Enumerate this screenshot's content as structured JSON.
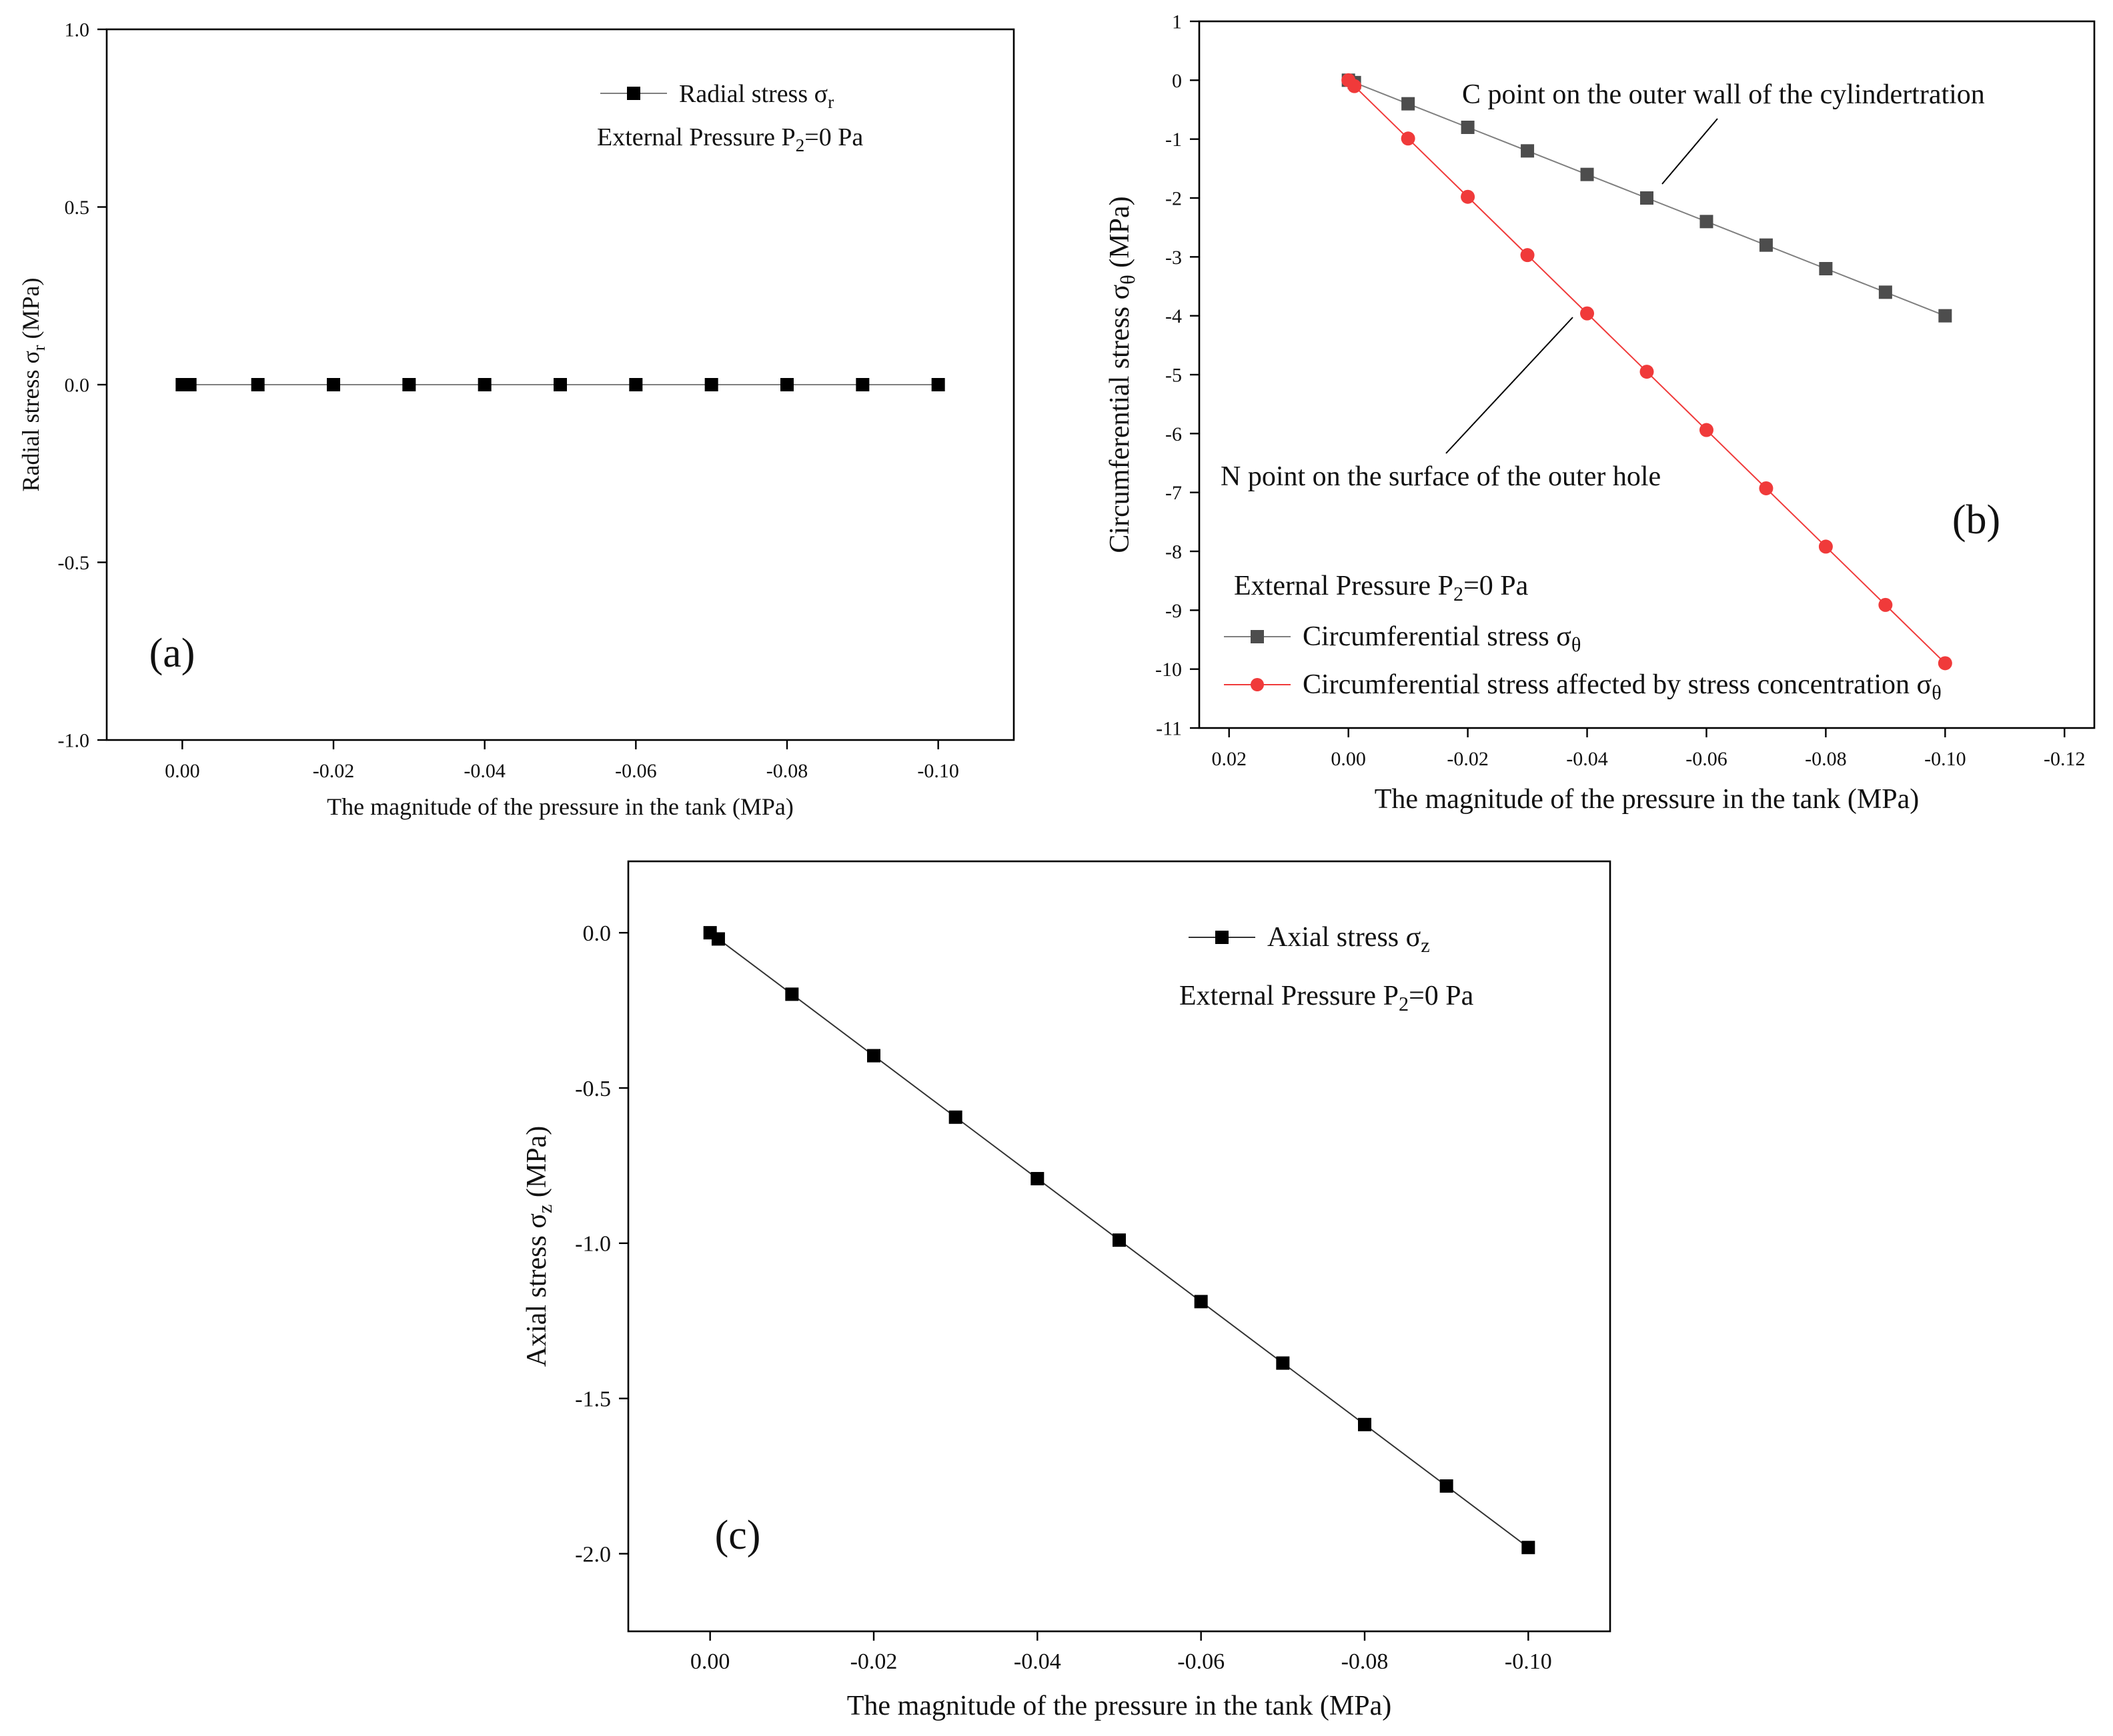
{
  "chart_data": [
    {
      "id": "a",
      "type": "line",
      "panel_label": "(a)",
      "xlabel": "The magnitude of the pressure in the tank (MPa)",
      "ylabel": "Radial stress σr (MPa)",
      "ylabel_main": "Radial stress σ",
      "ylabel_sub": "r",
      "ylabel_unit": " (MPa)",
      "xlim": [
        0.01,
        -0.11
      ],
      "ylim": [
        -1.0,
        1.0
      ],
      "xticks": [
        0.0,
        -0.02,
        -0.04,
        -0.06,
        -0.08,
        -0.1
      ],
      "xtick_labels": [
        "0.00",
        "-0.02",
        "-0.04",
        "-0.06",
        "-0.08",
        "-0.10"
      ],
      "yticks": [
        -1.0,
        -0.5,
        0.0,
        0.5,
        1.0
      ],
      "ytick_labels": [
        "-1.0",
        "-0.5",
        "0.0",
        "0.5",
        "1.0"
      ],
      "annotation_main": "External Pressure P",
      "annotation_sub": "2",
      "annotation_tail": "=0 Pa",
      "series": [
        {
          "name": "Radial stress σr",
          "name_main": "Radial stress σ",
          "name_sub": "r",
          "marker": "square",
          "color": "#000000",
          "line_color": "#7f7f7f",
          "x": [
            0.0,
            -0.001,
            -0.01,
            -0.02,
            -0.03,
            -0.04,
            -0.05,
            -0.06,
            -0.07,
            -0.08,
            -0.09,
            -0.1
          ],
          "y": [
            0,
            0,
            0,
            0,
            0,
            0,
            0,
            0,
            0,
            0,
            0,
            0
          ]
        }
      ]
    },
    {
      "id": "b",
      "type": "line",
      "panel_label": "(b)",
      "xlabel": "The magnitude of the pressure in the tank (MPa)",
      "ylabel": "Circumferential stress σθ (MPa)",
      "ylabel_main": "Circumferential stress σ",
      "ylabel_sub": "θ",
      "ylabel_unit": " (MPa)",
      "xlim": [
        0.025,
        -0.125
      ],
      "ylim": [
        -11,
        1
      ],
      "xticks": [
        0.02,
        0.0,
        -0.02,
        -0.04,
        -0.06,
        -0.08,
        -0.1,
        -0.12
      ],
      "xtick_labels": [
        "0.02",
        "0.00",
        "-0.02",
        "-0.04",
        "-0.06",
        "-0.08",
        "-0.10",
        "-0.12"
      ],
      "yticks": [
        1,
        0,
        -1,
        -2,
        -3,
        -4,
        -5,
        -6,
        -7,
        -8,
        -9,
        -10,
        -11
      ],
      "ytick_labels": [
        "1",
        "0",
        "-1",
        "-2",
        "-3",
        "-4",
        "-5",
        "-6",
        "-7",
        "-8",
        "-9",
        "-10",
        "-11"
      ],
      "annotation_main": "External Pressure P",
      "annotation_sub": "2",
      "annotation_tail": "=0 Pa",
      "callouts": [
        "C point on the outer wall of the cylindertration",
        "N point on the surface of the outer hole"
      ],
      "series": [
        {
          "name": "Circumferential stress σθ",
          "name_main": "Circumferential stress σ",
          "name_sub": "θ",
          "marker": "square",
          "color": "#4d4d4d",
          "line_color": "#7f7f7f",
          "x": [
            0.0,
            -0.001,
            -0.01,
            -0.02,
            -0.03,
            -0.04,
            -0.05,
            -0.06,
            -0.07,
            -0.08,
            -0.09,
            -0.1
          ],
          "y": [
            0,
            -0.04,
            -0.4,
            -0.8,
            -1.2,
            -1.6,
            -2.0,
            -2.4,
            -2.8,
            -3.2,
            -3.6,
            -4.0
          ]
        },
        {
          "name": "Circumferential stress affected by stress concentration σθ",
          "name_main": "Circumferential stress affected by stress concentration σ",
          "name_sub": "θ",
          "marker": "circle",
          "color": "#f03a3a",
          "line_color": "#f03a3a",
          "x": [
            0.0,
            -0.001,
            -0.01,
            -0.02,
            -0.03,
            -0.04,
            -0.05,
            -0.06,
            -0.07,
            -0.08,
            -0.09,
            -0.1
          ],
          "y": [
            0,
            -0.1,
            -0.99,
            -1.98,
            -2.97,
            -3.96,
            -4.95,
            -5.94,
            -6.93,
            -7.92,
            -8.91,
            -9.9
          ]
        }
      ]
    },
    {
      "id": "c",
      "type": "line",
      "panel_label": "(c)",
      "xlabel": "The magnitude of the pressure in the tank (MPa)",
      "ylabel": "Axial stress σz (MPa)",
      "ylabel_main": "Axial stress σ",
      "ylabel_sub": "z",
      "ylabel_unit": " (MPa)",
      "xlim": [
        0.01,
        -0.11
      ],
      "ylim": [
        -2.25,
        0.23
      ],
      "xticks": [
        0.0,
        -0.02,
        -0.04,
        -0.06,
        -0.08,
        -0.1
      ],
      "xtick_labels": [
        "0.00",
        "-0.02",
        "-0.04",
        "-0.06",
        "-0.08",
        "-0.10"
      ],
      "yticks": [
        0.0,
        -0.5,
        -1.0,
        -1.5,
        -2.0
      ],
      "ytick_labels": [
        "0.0",
        "-0.5",
        "-1.0",
        "-1.5",
        "-2.0"
      ],
      "annotation_main": "External Pressure P",
      "annotation_sub": "2",
      "annotation_tail": "=0 Pa",
      "series": [
        {
          "name": "Axial stress σz",
          "name_main": "Axial stress σ",
          "name_sub": "z",
          "marker": "square",
          "color": "#000000",
          "line_color": "#333333",
          "x": [
            0.0,
            -0.001,
            -0.01,
            -0.02,
            -0.03,
            -0.04,
            -0.05,
            -0.06,
            -0.07,
            -0.08,
            -0.09,
            -0.1
          ],
          "y": [
            0,
            -0.02,
            -0.198,
            -0.396,
            -0.594,
            -0.792,
            -0.99,
            -1.188,
            -1.386,
            -1.584,
            -1.782,
            -1.98
          ]
        }
      ]
    }
  ]
}
